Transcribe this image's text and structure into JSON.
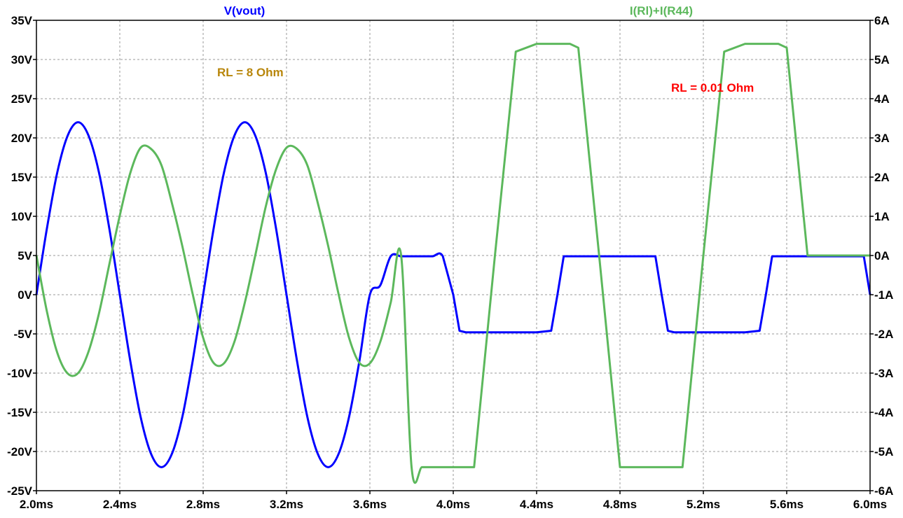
{
  "chart_data": {
    "type": "line",
    "x_ticks": [
      "2.0ms",
      "2.4ms",
      "2.8ms",
      "3.2ms",
      "3.6ms",
      "4.0ms",
      "4.4ms",
      "4.8ms",
      "5.2ms",
      "5.6ms",
      "6.0ms"
    ],
    "xlim": [
      2.0,
      6.0
    ],
    "x_unit": "ms",
    "y_left_ticks": [
      "35V",
      "30V",
      "25V",
      "20V",
      "15V",
      "10V",
      "5V",
      "0V",
      "-5V",
      "-10V",
      "-15V",
      "-20V",
      "-25V"
    ],
    "ylim_left": [
      -25,
      35
    ],
    "y_right_ticks": [
      "6A",
      "5A",
      "4A",
      "3A",
      "2A",
      "1A",
      "0A",
      "-1A",
      "-2A",
      "-3A",
      "-4A",
      "-5A",
      "-6A"
    ],
    "ylim_right": [
      -6,
      6
    ],
    "grid": true,
    "series": [
      {
        "name": "V(vout)",
        "axis": "left",
        "color": "#0000ff",
        "x": [
          2.0,
          2.05,
          2.1,
          2.15,
          2.2,
          2.25,
          2.3,
          2.35,
          2.4,
          2.45,
          2.5,
          2.55,
          2.6,
          2.65,
          2.7,
          2.75,
          2.8,
          2.85,
          2.9,
          2.95,
          3.0,
          3.05,
          3.1,
          3.15,
          3.2,
          3.25,
          3.3,
          3.35,
          3.4,
          3.45,
          3.5,
          3.55,
          3.6,
          3.65,
          3.7,
          3.75,
          3.8,
          3.85,
          3.9,
          3.95,
          4.0,
          4.03,
          4.06,
          4.1,
          4.2,
          4.3,
          4.4,
          4.47,
          4.5,
          4.53,
          4.56,
          4.6,
          4.7,
          4.8,
          4.9,
          4.97,
          5.0,
          5.03,
          5.06,
          5.1,
          5.2,
          5.3,
          5.4,
          5.47,
          5.5,
          5.53,
          5.56,
          5.6,
          5.7,
          5.8,
          5.9,
          5.97,
          6.0
        ],
        "values": [
          0,
          8.4,
          15.6,
          20.3,
          22,
          20.3,
          15.6,
          8.4,
          0,
          -8.4,
          -15.6,
          -20.3,
          -22,
          -20.3,
          -15.6,
          -8.4,
          0,
          8.4,
          15.6,
          20.3,
          22,
          20.3,
          15.6,
          8.4,
          0,
          -8.4,
          -15.6,
          -20.3,
          -22,
          -20.3,
          -15.6,
          -8.4,
          0,
          1.2,
          4.9,
          4.9,
          4.9,
          4.9,
          4.9,
          4.9,
          0,
          -4.6,
          -4.8,
          -4.8,
          -4.8,
          -4.8,
          -4.8,
          -4.6,
          0,
          4.9,
          4.9,
          4.9,
          4.9,
          4.9,
          4.9,
          4.9,
          0,
          -4.6,
          -4.8,
          -4.8,
          -4.8,
          -4.8,
          -4.8,
          -4.6,
          0,
          4.9,
          4.9,
          4.9,
          4.9,
          4.9,
          4.9,
          4.9,
          0
        ]
      },
      {
        "name": "I(Rl)+I(R44)",
        "axis": "right",
        "color": "#5cb85c",
        "x": [
          2.0,
          2.05,
          2.1,
          2.15,
          2.2,
          2.25,
          2.3,
          2.35,
          2.4,
          2.45,
          2.5,
          2.55,
          2.6,
          2.65,
          2.7,
          2.75,
          2.8,
          2.85,
          2.9,
          2.95,
          3.0,
          3.05,
          3.1,
          3.15,
          3.2,
          3.25,
          3.3,
          3.35,
          3.4,
          3.45,
          3.5,
          3.55,
          3.6,
          3.65,
          3.7,
          3.75,
          3.8,
          3.85,
          3.9,
          3.95,
          4.0,
          4.02,
          4.04,
          4.1,
          4.2,
          4.3,
          4.4,
          4.47,
          4.5,
          4.53,
          4.56,
          4.6,
          4.7,
          4.8,
          4.9,
          4.97,
          5.0,
          5.02,
          5.04,
          5.1,
          5.2,
          5.3,
          5.4,
          5.47,
          5.5,
          5.53,
          5.56,
          5.6,
          5.7,
          5.8,
          5.9,
          5.97,
          6.0
        ],
        "values": [
          0,
          -1.42,
          -2.48,
          -3.01,
          -3.0,
          -2.45,
          -1.48,
          -0.22,
          1.02,
          2.1,
          2.75,
          2.72,
          2.3,
          1.34,
          0.24,
          -0.99,
          -2.1,
          -2.74,
          -2.75,
          -2.2,
          -1.2,
          0,
          1.24,
          2.2,
          2.75,
          2.72,
          2.3,
          1.34,
          0.24,
          -0.99,
          -2.1,
          -2.74,
          -2.75,
          -2.2,
          -1.2,
          0,
          -5.4,
          -5.4,
          -5.4,
          -5.4,
          -5.4,
          -5.4,
          -5.4,
          -5.4,
          0,
          5.2,
          5.4,
          5.4,
          5.4,
          5.4,
          5.4,
          5.3,
          0,
          -5.4,
          -5.4,
          -5.4,
          -5.4,
          -5.4,
          -5.4,
          -5.4,
          0,
          5.2,
          5.4,
          5.4,
          5.4,
          5.4,
          5.4,
          5.3,
          0,
          0,
          0,
          0,
          0
        ]
      }
    ],
    "annotations": [
      {
        "text": "RL = 8 Ohm",
        "color": "#b8860b"
      },
      {
        "text": "RL = 0.01 Ohm",
        "color": "#ff0000"
      }
    ]
  }
}
